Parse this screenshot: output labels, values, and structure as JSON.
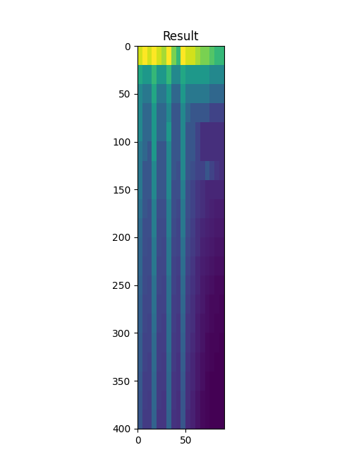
{
  "chart_data": {
    "type": "heatmap",
    "title": "Result",
    "xlim": [
      0,
      90
    ],
    "ylim": [
      400,
      0
    ],
    "xticks": [
      0,
      50
    ],
    "yticks": [
      0,
      50,
      100,
      150,
      200,
      250,
      300,
      350,
      400
    ],
    "cells": [
      [
        0.8,
        0.85,
        0.8,
        0.85,
        0.8,
        0.75,
        0.85,
        0.7,
        0.6,
        0.85,
        0.8,
        0.8,
        0.75,
        0.7,
        0.7,
        0.65,
        0.6,
        0.6
      ],
      [
        0.55,
        0.5,
        0.5,
        0.6,
        0.5,
        0.5,
        0.6,
        0.45,
        0.45,
        0.55,
        0.5,
        0.5,
        0.5,
        0.5,
        0.5,
        0.45,
        0.45,
        0.45
      ],
      [
        0.45,
        0.4,
        0.4,
        0.55,
        0.4,
        0.4,
        0.5,
        0.35,
        0.35,
        0.5,
        0.4,
        0.4,
        0.4,
        0.4,
        0.4,
        0.35,
        0.35,
        0.35
      ],
      [
        0.45,
        0.35,
        0.35,
        0.5,
        0.35,
        0.35,
        0.45,
        0.3,
        0.3,
        0.45,
        0.35,
        0.3,
        0.3,
        0.3,
        0.3,
        0.25,
        0.25,
        0.25
      ],
      [
        0.45,
        0.35,
        0.35,
        0.5,
        0.35,
        0.35,
        0.5,
        0.3,
        0.3,
        0.45,
        0.3,
        0.3,
        0.25,
        0.2,
        0.2,
        0.2,
        0.2,
        0.2
      ],
      [
        0.4,
        0.35,
        0.3,
        0.5,
        0.3,
        0.3,
        0.45,
        0.3,
        0.3,
        0.45,
        0.3,
        0.3,
        0.25,
        0.2,
        0.2,
        0.2,
        0.2,
        0.2
      ],
      [
        0.4,
        0.3,
        0.3,
        0.45,
        0.3,
        0.3,
        0.45,
        0.3,
        0.28,
        0.45,
        0.3,
        0.28,
        0.25,
        0.25,
        0.3,
        0.25,
        0.22,
        0.2
      ],
      [
        0.4,
        0.3,
        0.3,
        0.45,
        0.3,
        0.3,
        0.45,
        0.28,
        0.28,
        0.42,
        0.28,
        0.25,
        0.22,
        0.2,
        0.18,
        0.18,
        0.18,
        0.18
      ],
      [
        0.38,
        0.3,
        0.28,
        0.42,
        0.28,
        0.28,
        0.42,
        0.28,
        0.26,
        0.4,
        0.28,
        0.25,
        0.22,
        0.2,
        0.18,
        0.17,
        0.16,
        0.16
      ],
      [
        0.36,
        0.28,
        0.28,
        0.42,
        0.27,
        0.27,
        0.42,
        0.27,
        0.25,
        0.4,
        0.27,
        0.24,
        0.2,
        0.18,
        0.17,
        0.16,
        0.15,
        0.15
      ],
      [
        0.35,
        0.28,
        0.27,
        0.4,
        0.27,
        0.26,
        0.4,
        0.26,
        0.25,
        0.38,
        0.26,
        0.23,
        0.2,
        0.17,
        0.16,
        0.15,
        0.14,
        0.14
      ],
      [
        0.35,
        0.27,
        0.27,
        0.4,
        0.26,
        0.26,
        0.4,
        0.25,
        0.24,
        0.37,
        0.25,
        0.22,
        0.18,
        0.16,
        0.15,
        0.14,
        0.13,
        0.13
      ],
      [
        0.34,
        0.27,
        0.26,
        0.38,
        0.26,
        0.25,
        0.38,
        0.25,
        0.23,
        0.36,
        0.24,
        0.21,
        0.18,
        0.15,
        0.14,
        0.13,
        0.12,
        0.12
      ],
      [
        0.33,
        0.26,
        0.26,
        0.38,
        0.25,
        0.25,
        0.38,
        0.24,
        0.23,
        0.35,
        0.23,
        0.2,
        0.17,
        0.15,
        0.13,
        0.12,
        0.12,
        0.11
      ],
      [
        0.33,
        0.26,
        0.25,
        0.37,
        0.25,
        0.24,
        0.37,
        0.24,
        0.22,
        0.34,
        0.22,
        0.2,
        0.16,
        0.14,
        0.13,
        0.12,
        0.11,
        0.11
      ],
      [
        0.32,
        0.25,
        0.25,
        0.36,
        0.24,
        0.24,
        0.37,
        0.23,
        0.22,
        0.33,
        0.22,
        0.19,
        0.16,
        0.14,
        0.12,
        0.11,
        0.11,
        0.1
      ],
      [
        0.32,
        0.25,
        0.24,
        0.36,
        0.24,
        0.23,
        0.36,
        0.23,
        0.21,
        0.32,
        0.21,
        0.18,
        0.15,
        0.13,
        0.12,
        0.11,
        0.1,
        0.1
      ],
      [
        0.31,
        0.24,
        0.24,
        0.35,
        0.23,
        0.23,
        0.35,
        0.22,
        0.21,
        0.31,
        0.2,
        0.18,
        0.15,
        0.13,
        0.11,
        0.1,
        0.1,
        0.1
      ],
      [
        0.3,
        0.24,
        0.23,
        0.35,
        0.23,
        0.22,
        0.35,
        0.22,
        0.2,
        0.3,
        0.2,
        0.17,
        0.14,
        0.12,
        0.11,
        0.1,
        0.1,
        0.1
      ],
      [
        0.3,
        0.23,
        0.23,
        0.34,
        0.22,
        0.22,
        0.34,
        0.21,
        0.2,
        0.3,
        0.19,
        0.17,
        0.14,
        0.12,
        0.11,
        0.1,
        0.1,
        0.1
      ]
    ]
  }
}
